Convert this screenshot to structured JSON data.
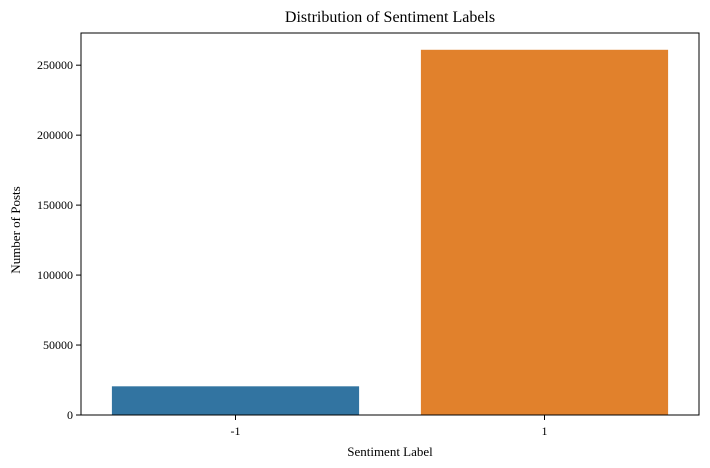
{
  "chart_data": {
    "type": "bar",
    "title": "Distribution of Sentiment Labels",
    "xlabel": "Sentiment Label",
    "ylabel": "Number of Posts",
    "categories": [
      "-1",
      "1"
    ],
    "values": [
      20500,
      261000
    ],
    "ylim": [
      0,
      273000
    ],
    "yticks": [
      0,
      50000,
      100000,
      150000,
      200000,
      250000
    ],
    "colors": [
      "#3274a1",
      "#e1812c"
    ],
    "grid": false,
    "legend": "none"
  }
}
